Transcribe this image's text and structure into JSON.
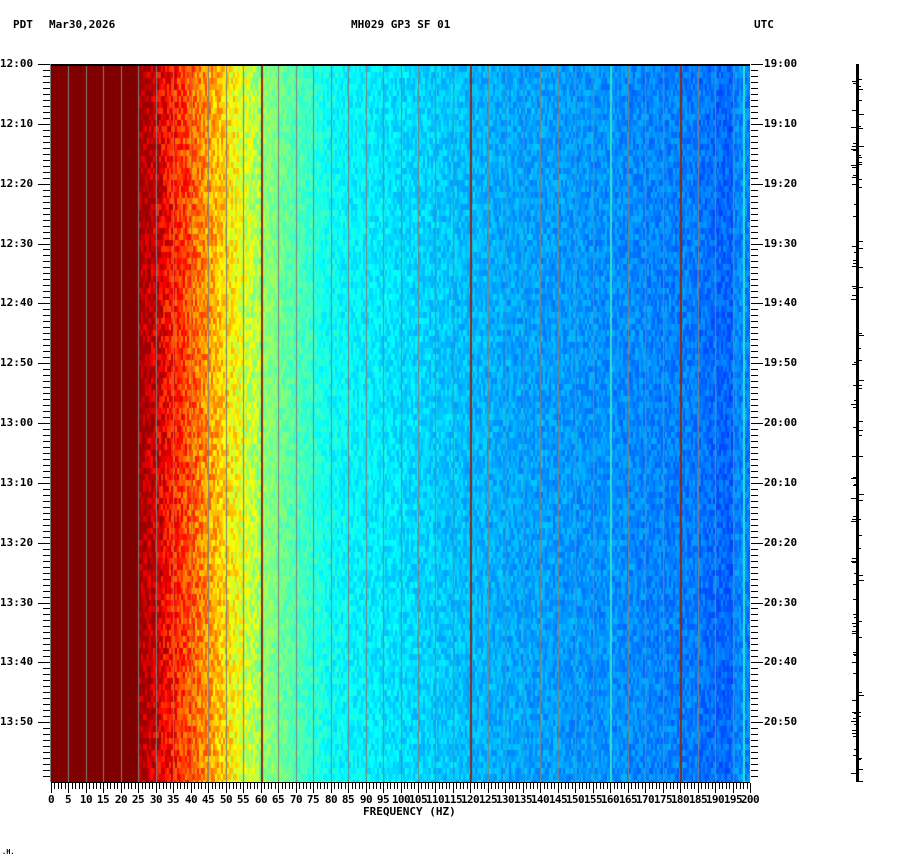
{
  "header": {
    "timezone_left": "PDT",
    "date": "Mar30,2026",
    "station": "MH029 GP3 SF 01",
    "timezone_right": "UTC"
  },
  "footer_mark": ".H.",
  "chart_data": {
    "type": "heatmap",
    "title": "MH029 GP3 SF 01",
    "subtitle": "Mar30,2026",
    "xlabel": "FREQUENCY (HZ)",
    "ylabel_left": "PDT",
    "ylabel_right": "UTC",
    "xlim": [
      0,
      200
    ],
    "x_ticks": [
      "0",
      "5",
      "10",
      "15",
      "20",
      "25",
      "30",
      "35",
      "40",
      "45",
      "50",
      "55",
      "60",
      "65",
      "70",
      "75",
      "80",
      "85",
      "90",
      "95",
      "100",
      "105",
      "110",
      "115",
      "120",
      "125",
      "130",
      "135",
      "140",
      "145",
      "150",
      "155",
      "160",
      "165",
      "170",
      "175",
      "180",
      "185",
      "190",
      "195",
      "200"
    ],
    "y_ticks_left": [
      "12:00",
      "12:10",
      "12:20",
      "12:30",
      "12:40",
      "12:50",
      "13:00",
      "13:10",
      "13:20",
      "13:30",
      "13:40",
      "13:50"
    ],
    "y_ticks_right": [
      "19:00",
      "19:10",
      "19:20",
      "19:30",
      "19:40",
      "19:50",
      "20:00",
      "20:10",
      "20:20",
      "20:30",
      "20:40",
      "20:50"
    ],
    "time_span_minutes": 120,
    "grid": {
      "vertical_every_hz": 5
    },
    "colormap": "jet",
    "colorscale_bands": [
      {
        "from_hz": 0,
        "to_hz": 25,
        "color": "dark red",
        "hex": "#800000"
      },
      {
        "from_hz": 25,
        "to_hz": 35,
        "color": "red/orange",
        "hex": "#ff2000"
      },
      {
        "from_hz": 35,
        "to_hz": 45,
        "color": "orange/yellow",
        "hex": "#ffc000"
      },
      {
        "from_hz": 45,
        "to_hz": 60,
        "color": "yellow/green",
        "hex": "#c0ff40"
      },
      {
        "from_hz": 60,
        "to_hz": 80,
        "color": "cyan",
        "hex": "#20d0ff"
      },
      {
        "from_hz": 80,
        "to_hz": 130,
        "color": "light blue",
        "hex": "#1080ff"
      },
      {
        "from_hz": 130,
        "to_hz": 200,
        "color": "blue",
        "hex": "#0040f0"
      }
    ],
    "spectral_lines_hz": [
      60,
      120,
      160,
      180,
      198
    ],
    "right_trace": "seismogram amplitude trace"
  }
}
